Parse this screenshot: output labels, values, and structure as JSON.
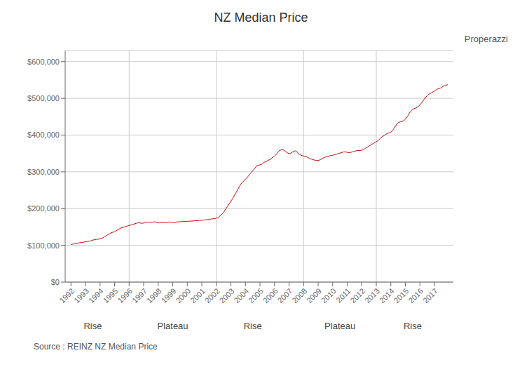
{
  "chart_data": {
    "type": "line",
    "title": "NZ Median Price",
    "source": "Source : REINZ NZ Median Price",
    "logo": "Properazzi",
    "color": "#cc0000",
    "grid": true,
    "xlim": [
      1991.6,
      2018.3
    ],
    "xticks": [
      1992,
      1993,
      1994,
      1995,
      1996,
      1997,
      1998,
      1999,
      2000,
      2001,
      2002,
      2003,
      2004,
      2005,
      2006,
      2007,
      2008,
      2009,
      2010,
      2011,
      2012,
      2013,
      2014,
      2015,
      2016,
      2017
    ],
    "ylim": [
      0,
      630000
    ],
    "yticks": [
      {
        "value": 0,
        "label": "$0"
      },
      {
        "value": 100000,
        "label": "$100,000"
      },
      {
        "value": 200000,
        "label": "$200,000"
      },
      {
        "value": 300000,
        "label": "$300,000"
      },
      {
        "value": 400000,
        "label": "$400,000"
      },
      {
        "value": 500000,
        "label": "$500,000"
      },
      {
        "value": 600000,
        "label": "$600,000"
      }
    ],
    "vlines": [
      1996,
      2002,
      2008,
      2013
    ],
    "annotations": [
      {
        "text": "Rise",
        "x": 1993.5
      },
      {
        "text": "Plateau",
        "x": 1999.0
      },
      {
        "text": "Rise",
        "x": 2004.5
      },
      {
        "text": "Plateau",
        "x": 2010.5
      },
      {
        "text": "Rise",
        "x": 2015.5
      }
    ],
    "x": [
      1992.0,
      1992.083,
      1992.167,
      1992.25,
      1992.333,
      1992.417,
      1992.5,
      1992.583,
      1992.667,
      1992.75,
      1992.833,
      1992.917,
      1993.0,
      1993.083,
      1993.167,
      1993.25,
      1993.333,
      1993.417,
      1993.5,
      1993.583,
      1993.667,
      1993.75,
      1993.833,
      1993.917,
      1994.0,
      1994.083,
      1994.167,
      1994.25,
      1994.333,
      1994.417,
      1994.5,
      1994.583,
      1994.667,
      1994.75,
      1994.833,
      1994.917,
      1995.0,
      1995.083,
      1995.167,
      1995.25,
      1995.333,
      1995.417,
      1995.5,
      1995.583,
      1995.667,
      1995.75,
      1995.833,
      1995.917,
      1996.0,
      1996.083,
      1996.167,
      1996.25,
      1996.333,
      1996.417,
      1996.5,
      1996.583,
      1996.667,
      1996.75,
      1996.833,
      1996.917,
      1997.0,
      1997.083,
      1997.167,
      1997.25,
      1997.333,
      1997.417,
      1997.5,
      1997.583,
      1997.667,
      1997.75,
      1997.833,
      1997.917,
      1998.0,
      1998.083,
      1998.167,
      1998.25,
      1998.333,
      1998.417,
      1998.5,
      1998.583,
      1998.667,
      1998.75,
      1998.833,
      1998.917,
      1999.0,
      1999.083,
      1999.167,
      1999.25,
      1999.333,
      1999.417,
      1999.5,
      1999.583,
      1999.667,
      1999.75,
      1999.833,
      1999.917,
      2000.0,
      2000.083,
      2000.167,
      2000.25,
      2000.333,
      2000.417,
      2000.5,
      2000.583,
      2000.667,
      2000.75,
      2000.833,
      2000.917,
      2001.0,
      2001.083,
      2001.167,
      2001.25,
      2001.333,
      2001.417,
      2001.5,
      2001.583,
      2001.667,
      2001.75,
      2001.833,
      2001.917,
      2002.0,
      2002.083,
      2002.167,
      2002.25,
      2002.333,
      2002.417,
      2002.5,
      2002.583,
      2002.667,
      2002.75,
      2002.833,
      2002.917,
      2003.0,
      2003.083,
      2003.167,
      2003.25,
      2003.333,
      2003.417,
      2003.5,
      2003.583,
      2003.667,
      2003.75,
      2003.833,
      2003.917,
      2004.0,
      2004.083,
      2004.167,
      2004.25,
      2004.333,
      2004.417,
      2004.5,
      2004.583,
      2004.667,
      2004.75,
      2004.833,
      2004.917,
      2005.0,
      2005.083,
      2005.167,
      2005.25,
      2005.333,
      2005.417,
      2005.5,
      2005.583,
      2005.667,
      2005.75,
      2005.833,
      2005.917,
      2006.0,
      2006.083,
      2006.167,
      2006.25,
      2006.333,
      2006.417,
      2006.5,
      2006.583,
      2006.667,
      2006.75,
      2006.833,
      2006.917,
      2007.0,
      2007.083,
      2007.167,
      2007.25,
      2007.333,
      2007.417,
      2007.5,
      2007.583,
      2007.667,
      2007.75,
      2007.833,
      2007.917,
      2008.0,
      2008.083,
      2008.167,
      2008.25,
      2008.333,
      2008.417,
      2008.5,
      2008.583,
      2008.667,
      2008.75,
      2008.833,
      2008.917,
      2009.0,
      2009.083,
      2009.167,
      2009.25,
      2009.333,
      2009.417,
      2009.5,
      2009.583,
      2009.667,
      2009.75,
      2009.833,
      2009.917,
      2010.0,
      2010.083,
      2010.167,
      2010.25,
      2010.333,
      2010.417,
      2010.5,
      2010.583,
      2010.667,
      2010.75,
      2010.833,
      2010.917,
      2011.0,
      2011.083,
      2011.167,
      2011.25,
      2011.333,
      2011.417,
      2011.5,
      2011.583,
      2011.667,
      2011.75,
      2011.833,
      2011.917,
      2012.0,
      2012.083,
      2012.167,
      2012.25,
      2012.333,
      2012.417,
      2012.5,
      2012.583,
      2012.667,
      2012.75,
      2012.833,
      2012.917,
      2013.0,
      2013.083,
      2013.167,
      2013.25,
      2013.333,
      2013.417,
      2013.5,
      2013.583,
      2013.667,
      2013.75,
      2013.833,
      2013.917,
      2014.0,
      2014.083,
      2014.167,
      2014.25,
      2014.333,
      2014.417,
      2014.5,
      2014.583,
      2014.667,
      2014.75,
      2014.833,
      2014.917,
      2015.0,
      2015.083,
      2015.167,
      2015.25,
      2015.333,
      2015.417,
      2015.5,
      2015.583,
      2015.667,
      2015.75,
      2015.833,
      2015.917,
      2016.0,
      2016.083,
      2016.167,
      2016.25,
      2016.333,
      2016.417,
      2016.5,
      2016.583,
      2016.667,
      2016.75,
      2016.833,
      2016.917,
      2017.0,
      2017.083,
      2017.167,
      2017.25,
      2017.333,
      2017.417,
      2017.5,
      2017.583,
      2017.667,
      2017.75,
      2017.833,
      2017.917
    ],
    "values": [
      102000,
      103000,
      103500,
      104000,
      104500,
      105000,
      106000,
      107000,
      107500,
      108000,
      108500,
      109000,
      109500,
      110000,
      111000,
      111500,
      112000,
      113000,
      114000,
      115000,
      115500,
      116000,
      116500,
      117000,
      118000,
      119000,
      120000,
      122000,
      124000,
      126000,
      128000,
      130000,
      132000,
      134000,
      135000,
      136000,
      137000,
      139000,
      141000,
      143000,
      145000,
      147000,
      148000,
      149000,
      150000,
      151000,
      152000,
      153000,
      154000,
      155000,
      156000,
      157000,
      158000,
      159000,
      160000,
      161000,
      162000,
      161000,
      160000,
      160000,
      161000,
      162000,
      163000,
      163000,
      163000,
      163000,
      163000,
      163000,
      163500,
      164000,
      163000,
      162000,
      161000,
      161000,
      162000,
      162000,
      162000,
      162000,
      162000,
      162500,
      163000,
      163500,
      163000,
      162500,
      162000,
      162000,
      163000,
      163500,
      164000,
      164000,
      164000,
      164500,
      165000,
      165000,
      165000,
      165000,
      165000,
      165500,
      166000,
      166000,
      166000,
      166500,
      167000,
      167000,
      167000,
      167500,
      168000,
      168000,
      168000,
      168500,
      169000,
      169500,
      170000,
      170000,
      170000,
      171000,
      172000,
      172000,
      173000,
      173000,
      174000,
      175000,
      177000,
      180000,
      183000,
      186000,
      190000,
      195000,
      200000,
      205000,
      210000,
      215000,
      220000,
      225000,
      230000,
      236000,
      242000,
      248000,
      254000,
      260000,
      266000,
      270000,
      273000,
      276000,
      280000,
      283000,
      287000,
      291000,
      295000,
      299000,
      303000,
      307000,
      311000,
      315000,
      317000,
      318000,
      319000,
      320000,
      322000,
      325000,
      327000,
      328000,
      330000,
      332000,
      333000,
      335000,
      338000,
      340000,
      343000,
      346000,
      350000,
      354000,
      357000,
      359000,
      360000,
      360000,
      358000,
      356000,
      353000,
      351000,
      350000,
      350000,
      352000,
      354000,
      356000,
      357000,
      356000,
      353000,
      349000,
      347000,
      345000,
      344000,
      343000,
      342000,
      341000,
      340000,
      338000,
      336000,
      335000,
      334000,
      333000,
      332000,
      331000,
      331000,
      331000,
      332000,
      333000,
      335000,
      337000,
      339000,
      340000,
      341000,
      342000,
      343000,
      344000,
      344000,
      345000,
      346000,
      347000,
      348000,
      349000,
      350000,
      351000,
      352000,
      353000,
      354000,
      354000,
      354000,
      353000,
      352000,
      352000,
      353000,
      354000,
      355000,
      356000,
      357000,
      358000,
      358000,
      358000,
      358000,
      359000,
      360000,
      362000,
      364000,
      366000,
      368000,
      370000,
      372000,
      374000,
      376000,
      378000,
      380000,
      382000,
      384000,
      387000,
      390000,
      393000,
      396000,
      398000,
      400000,
      402000,
      404000,
      405000,
      406000,
      408000,
      411000,
      415000,
      420000,
      425000,
      430000,
      433000,
      435000,
      436000,
      437000,
      438000,
      440000,
      443000,
      447000,
      452000,
      458000,
      463000,
      467000,
      470000,
      472000,
      473000,
      474000,
      476000,
      479000,
      482000,
      486000,
      490000,
      495000,
      500000,
      504000,
      507000,
      510000,
      512000,
      514000,
      516000,
      518000,
      520000,
      522000,
      524000,
      526000,
      527000,
      528000,
      530000,
      532000,
      534000,
      535000,
      536000,
      537000
    ]
  }
}
